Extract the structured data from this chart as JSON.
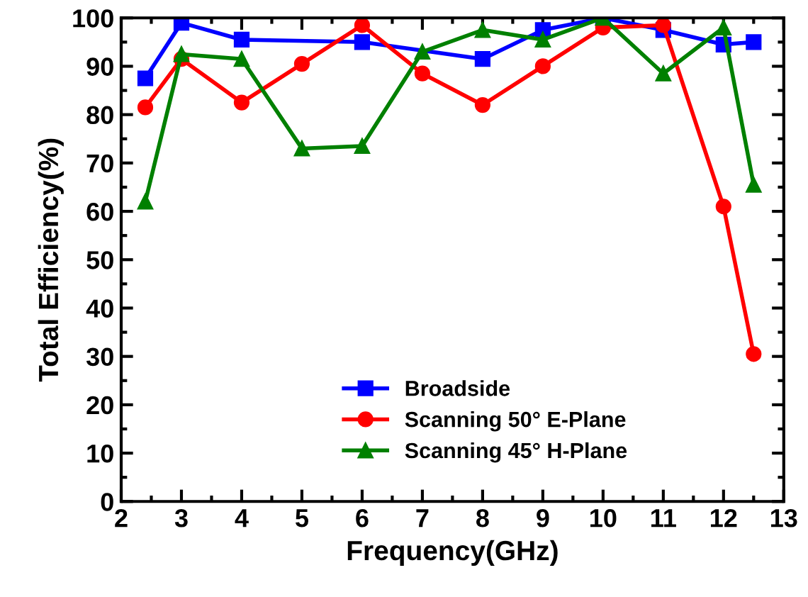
{
  "chart_data": {
    "type": "line",
    "xlabel": "Frequency(GHz)",
    "ylabel": "Total Efficiency(%)",
    "xlim": [
      2,
      13
    ],
    "xticks": [
      2,
      3,
      4,
      5,
      6,
      7,
      8,
      9,
      10,
      11,
      12,
      13
    ],
    "ylim": [
      0,
      100
    ],
    "yticks": [
      0,
      10,
      20,
      30,
      40,
      50,
      60,
      70,
      80,
      90,
      100
    ],
    "grid": false,
    "legend": "bottom",
    "line_style": "solid",
    "series": [
      {
        "name": "Broadside",
        "color": "#0000ff",
        "marker": "square",
        "x": [
          2.4,
          3,
          4,
          6,
          8,
          9,
          10,
          11,
          12,
          12.5
        ],
        "values": [
          87.5,
          99,
          95.5,
          95,
          91.5,
          97.5,
          100,
          97.5,
          94.5,
          95
        ]
      },
      {
        "name": "Scanning 50° E-Plane",
        "color": "#ff0000",
        "marker": "circle",
        "x": [
          2.4,
          3,
          4,
          5,
          6,
          7,
          8,
          9,
          10,
          11,
          12,
          12.5
        ],
        "values": [
          81.5,
          91.5,
          82.5,
          90.5,
          98.5,
          88.5,
          82,
          90,
          98,
          98.5,
          61,
          30.5
        ]
      },
      {
        "name": "Scanning 45° H-Plane",
        "color": "#008000",
        "marker": "triangle",
        "x": [
          2.4,
          3,
          4,
          5,
          6,
          7,
          8,
          9,
          10,
          11,
          12,
          12.5
        ],
        "values": [
          62,
          92.5,
          91.5,
          73,
          73.5,
          93,
          97.5,
          95.5,
          100,
          88.5,
          98,
          65.5
        ]
      }
    ]
  }
}
